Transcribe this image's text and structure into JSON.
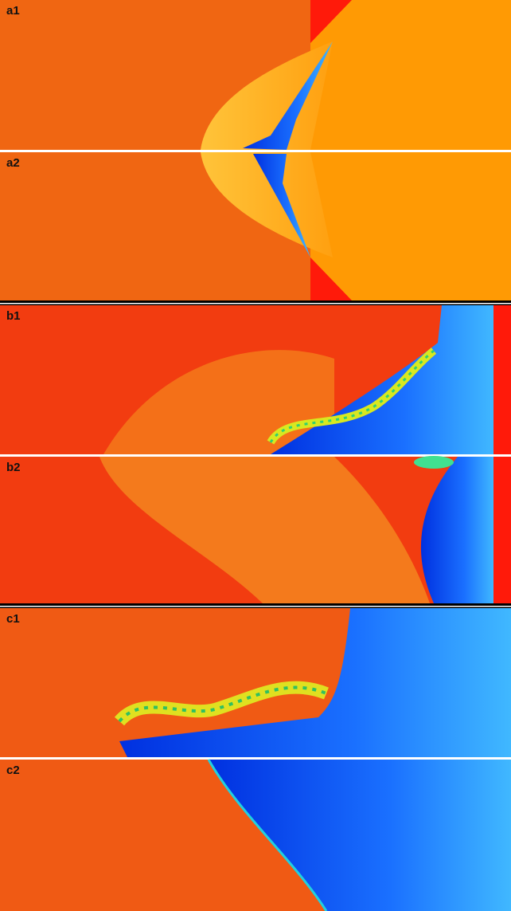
{
  "panels": [
    {
      "label": "a1"
    },
    {
      "label": "a2"
    },
    {
      "label": "b1"
    },
    {
      "label": "b2"
    },
    {
      "label": "c1"
    },
    {
      "label": "c2"
    }
  ]
}
